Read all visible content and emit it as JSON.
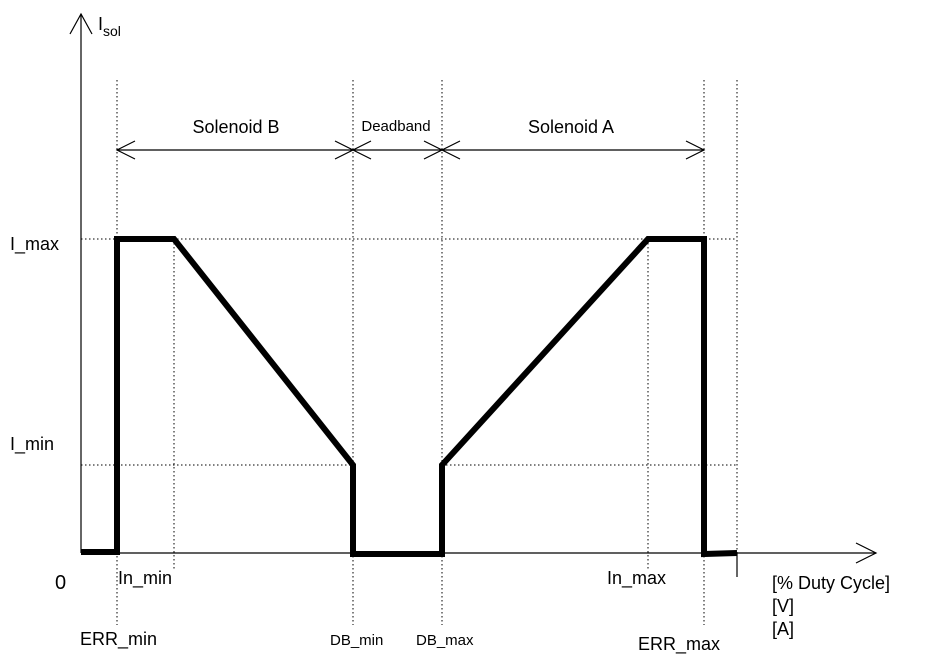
{
  "y_axis": {
    "label": "I",
    "label_sub": "sol"
  },
  "origin_label": "0",
  "current_levels": {
    "max": "I_max",
    "min": "I_min"
  },
  "regions": {
    "solenoid_b": "Solenoid B",
    "deadband": "Deadband",
    "solenoid_a": "Solenoid A"
  },
  "markers": {
    "in_min": "In_min",
    "in_max": "In_max",
    "err_min": "ERR_min",
    "err_max": "ERR_max",
    "db_min": "DB_min",
    "db_max": "DB_max"
  },
  "x_units": [
    "[% Duty Cycle]",
    "[V]",
    "[A]"
  ]
}
